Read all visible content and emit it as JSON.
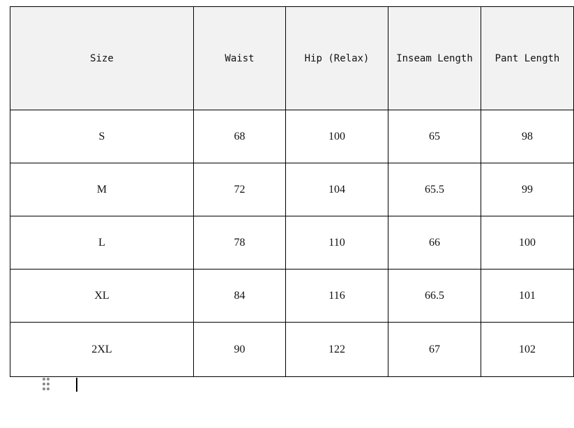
{
  "table": {
    "headers": [
      "Size",
      "Waist",
      "Hip (Relax)",
      "Inseam Length",
      "Pant Length"
    ],
    "rows": [
      [
        "S",
        "68",
        "100",
        "65",
        "98"
      ],
      [
        "M",
        "72",
        "104",
        "65.5",
        "99"
      ],
      [
        "L",
        "78",
        "110",
        "66",
        "100"
      ],
      [
        "XL",
        "84",
        "116",
        "66.5",
        "101"
      ],
      [
        "2XL",
        "90",
        "122",
        "67",
        "102"
      ]
    ]
  },
  "icons": {
    "handle": "drag-handle-icon"
  }
}
